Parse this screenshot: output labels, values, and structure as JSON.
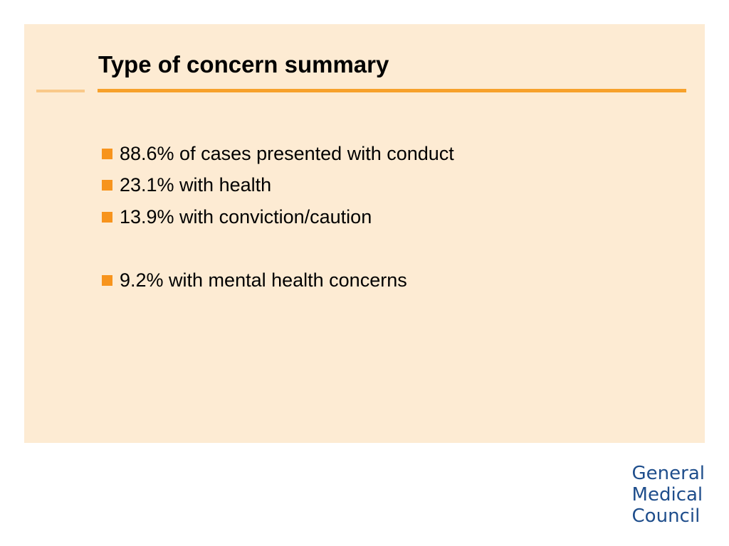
{
  "slide": {
    "title": "Type of concern summary",
    "bullets": [
      "88.6% of cases presented with conduct",
      "23.1% with health",
      "13.9% with conviction/caution",
      "9.2% with mental health concerns"
    ],
    "logo": {
      "lines": [
        "General",
        "Medical",
        "Council"
      ]
    },
    "colors": {
      "panel_background": "#fdebd3",
      "accent_orange": "#f7a12b",
      "bullet_orange": "#f7941d",
      "logo_blue": "#1f4e8c"
    }
  }
}
